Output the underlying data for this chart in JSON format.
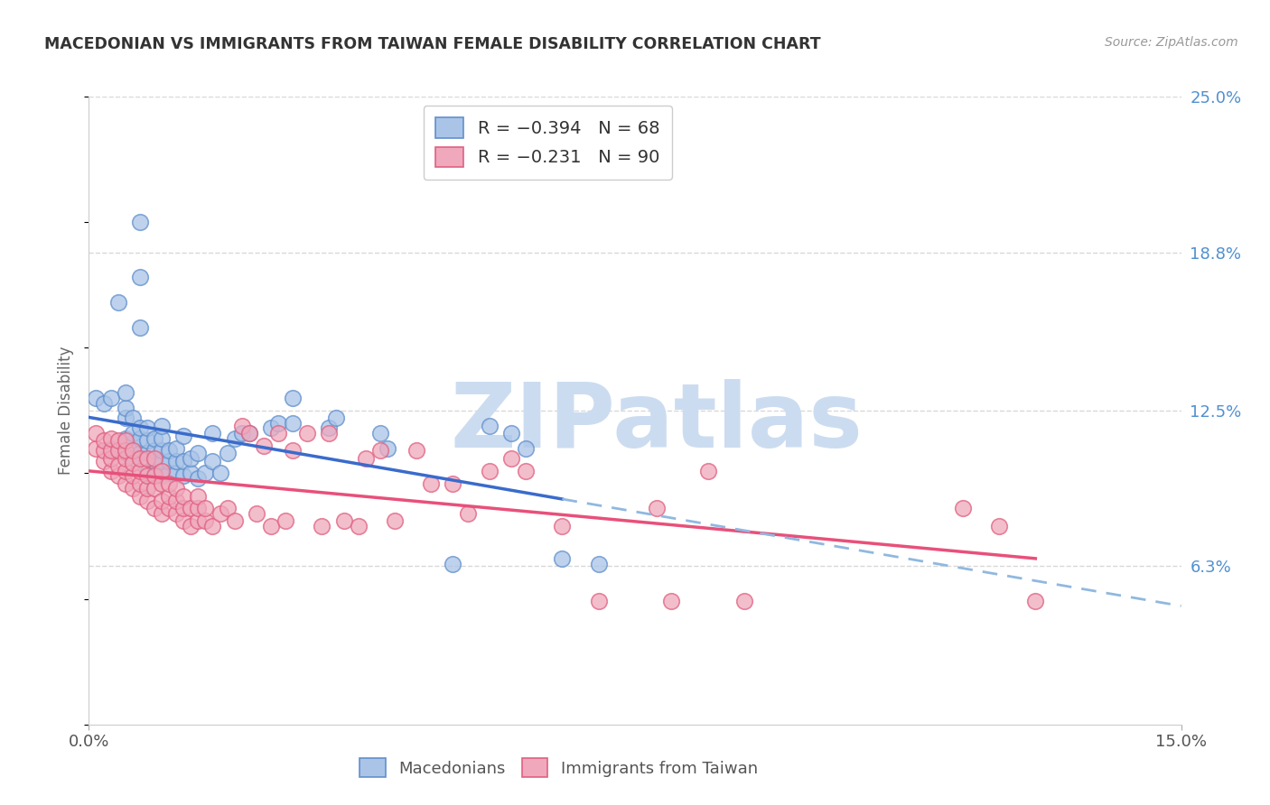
{
  "title": "MACEDONIAN VS IMMIGRANTS FROM TAIWAN FEMALE DISABILITY CORRELATION CHART",
  "source": "Source: ZipAtlas.com",
  "ylabel": "Female Disability",
  "xlim": [
    0.0,
    0.15
  ],
  "ylim": [
    0.0,
    0.25
  ],
  "xtick_vals": [
    0.0,
    0.15
  ],
  "xtick_labels": [
    "0.0%",
    "15.0%"
  ],
  "ytick_vals_right": [
    0.25,
    0.188,
    0.125,
    0.063
  ],
  "ytick_labels_right": [
    "25.0%",
    "18.8%",
    "12.5%",
    "6.3%"
  ],
  "mac_color": "#aac4e8",
  "tai_color": "#f0a8bc",
  "mac_edge_color": "#6090cc",
  "tai_edge_color": "#e06080",
  "mac_line_color": "#3a6bcc",
  "tai_line_color": "#e8507a",
  "dashed_color": "#90b8e0",
  "watermark_text": "ZIPatlas",
  "watermark_color": "#ccdcf0",
  "mac_r": -0.394,
  "mac_n": 68,
  "tai_r": -0.231,
  "tai_n": 90,
  "legend_label_mac": "R = −0.394   N = 68",
  "legend_label_tai": "R = −0.231   N = 90",
  "grid_color": "#d8d8d8",
  "background_color": "#ffffff",
  "mac_points": [
    [
      0.001,
      0.13
    ],
    [
      0.002,
      0.128
    ],
    [
      0.003,
      0.11
    ],
    [
      0.003,
      0.13
    ],
    [
      0.004,
      0.168
    ],
    [
      0.005,
      0.108
    ],
    [
      0.005,
      0.114
    ],
    [
      0.005,
      0.122
    ],
    [
      0.005,
      0.126
    ],
    [
      0.005,
      0.132
    ],
    [
      0.006,
      0.106
    ],
    [
      0.006,
      0.112
    ],
    [
      0.006,
      0.116
    ],
    [
      0.006,
      0.122
    ],
    [
      0.007,
      0.108
    ],
    [
      0.007,
      0.114
    ],
    [
      0.007,
      0.118
    ],
    [
      0.007,
      0.158
    ],
    [
      0.007,
      0.178
    ],
    [
      0.007,
      0.2
    ],
    [
      0.008,
      0.1
    ],
    [
      0.008,
      0.108
    ],
    [
      0.008,
      0.113
    ],
    [
      0.008,
      0.118
    ],
    [
      0.009,
      0.1
    ],
    [
      0.009,
      0.105
    ],
    [
      0.009,
      0.109
    ],
    [
      0.009,
      0.114
    ],
    [
      0.01,
      0.099
    ],
    [
      0.01,
      0.105
    ],
    [
      0.01,
      0.109
    ],
    [
      0.01,
      0.114
    ],
    [
      0.01,
      0.119
    ],
    [
      0.011,
      0.1
    ],
    [
      0.011,
      0.105
    ],
    [
      0.011,
      0.109
    ],
    [
      0.012,
      0.1
    ],
    [
      0.012,
      0.105
    ],
    [
      0.012,
      0.11
    ],
    [
      0.013,
      0.099
    ],
    [
      0.013,
      0.105
    ],
    [
      0.013,
      0.115
    ],
    [
      0.014,
      0.1
    ],
    [
      0.014,
      0.106
    ],
    [
      0.015,
      0.098
    ],
    [
      0.015,
      0.108
    ],
    [
      0.016,
      0.1
    ],
    [
      0.017,
      0.105
    ],
    [
      0.017,
      0.116
    ],
    [
      0.018,
      0.1
    ],
    [
      0.019,
      0.108
    ],
    [
      0.02,
      0.114
    ],
    [
      0.021,
      0.116
    ],
    [
      0.022,
      0.116
    ],
    [
      0.025,
      0.118
    ],
    [
      0.026,
      0.12
    ],
    [
      0.028,
      0.12
    ],
    [
      0.028,
      0.13
    ],
    [
      0.033,
      0.118
    ],
    [
      0.034,
      0.122
    ],
    [
      0.04,
      0.116
    ],
    [
      0.041,
      0.11
    ],
    [
      0.05,
      0.064
    ],
    [
      0.055,
      0.119
    ],
    [
      0.058,
      0.116
    ],
    [
      0.06,
      0.11
    ],
    [
      0.065,
      0.066
    ],
    [
      0.07,
      0.064
    ]
  ],
  "tai_points": [
    [
      0.001,
      0.11
    ],
    [
      0.001,
      0.116
    ],
    [
      0.002,
      0.105
    ],
    [
      0.002,
      0.109
    ],
    [
      0.002,
      0.113
    ],
    [
      0.003,
      0.101
    ],
    [
      0.003,
      0.106
    ],
    [
      0.003,
      0.109
    ],
    [
      0.003,
      0.114
    ],
    [
      0.004,
      0.099
    ],
    [
      0.004,
      0.103
    ],
    [
      0.004,
      0.109
    ],
    [
      0.004,
      0.113
    ],
    [
      0.005,
      0.096
    ],
    [
      0.005,
      0.101
    ],
    [
      0.005,
      0.106
    ],
    [
      0.005,
      0.109
    ],
    [
      0.005,
      0.113
    ],
    [
      0.006,
      0.094
    ],
    [
      0.006,
      0.099
    ],
    [
      0.006,
      0.104
    ],
    [
      0.006,
      0.109
    ],
    [
      0.007,
      0.091
    ],
    [
      0.007,
      0.096
    ],
    [
      0.007,
      0.101
    ],
    [
      0.007,
      0.106
    ],
    [
      0.008,
      0.089
    ],
    [
      0.008,
      0.094
    ],
    [
      0.008,
      0.099
    ],
    [
      0.008,
      0.106
    ],
    [
      0.009,
      0.086
    ],
    [
      0.009,
      0.094
    ],
    [
      0.009,
      0.099
    ],
    [
      0.009,
      0.106
    ],
    [
      0.01,
      0.084
    ],
    [
      0.01,
      0.089
    ],
    [
      0.01,
      0.096
    ],
    [
      0.01,
      0.101
    ],
    [
      0.011,
      0.086
    ],
    [
      0.011,
      0.091
    ],
    [
      0.011,
      0.096
    ],
    [
      0.012,
      0.084
    ],
    [
      0.012,
      0.089
    ],
    [
      0.012,
      0.094
    ],
    [
      0.013,
      0.081
    ],
    [
      0.013,
      0.086
    ],
    [
      0.013,
      0.091
    ],
    [
      0.014,
      0.079
    ],
    [
      0.014,
      0.086
    ],
    [
      0.015,
      0.081
    ],
    [
      0.015,
      0.086
    ],
    [
      0.015,
      0.091
    ],
    [
      0.016,
      0.081
    ],
    [
      0.016,
      0.086
    ],
    [
      0.017,
      0.079
    ],
    [
      0.018,
      0.084
    ],
    [
      0.019,
      0.086
    ],
    [
      0.02,
      0.081
    ],
    [
      0.021,
      0.119
    ],
    [
      0.022,
      0.116
    ],
    [
      0.023,
      0.084
    ],
    [
      0.024,
      0.111
    ],
    [
      0.025,
      0.079
    ],
    [
      0.026,
      0.116
    ],
    [
      0.027,
      0.081
    ],
    [
      0.028,
      0.109
    ],
    [
      0.03,
      0.116
    ],
    [
      0.032,
      0.079
    ],
    [
      0.033,
      0.116
    ],
    [
      0.035,
      0.081
    ],
    [
      0.037,
      0.079
    ],
    [
      0.038,
      0.106
    ],
    [
      0.04,
      0.109
    ],
    [
      0.042,
      0.081
    ],
    [
      0.045,
      0.109
    ],
    [
      0.047,
      0.096
    ],
    [
      0.05,
      0.096
    ],
    [
      0.052,
      0.084
    ],
    [
      0.055,
      0.101
    ],
    [
      0.058,
      0.106
    ],
    [
      0.06,
      0.101
    ],
    [
      0.065,
      0.079
    ],
    [
      0.07,
      0.049
    ],
    [
      0.078,
      0.086
    ],
    [
      0.08,
      0.049
    ],
    [
      0.085,
      0.101
    ],
    [
      0.09,
      0.049
    ],
    [
      0.12,
      0.086
    ],
    [
      0.125,
      0.079
    ],
    [
      0.13,
      0.049
    ]
  ]
}
